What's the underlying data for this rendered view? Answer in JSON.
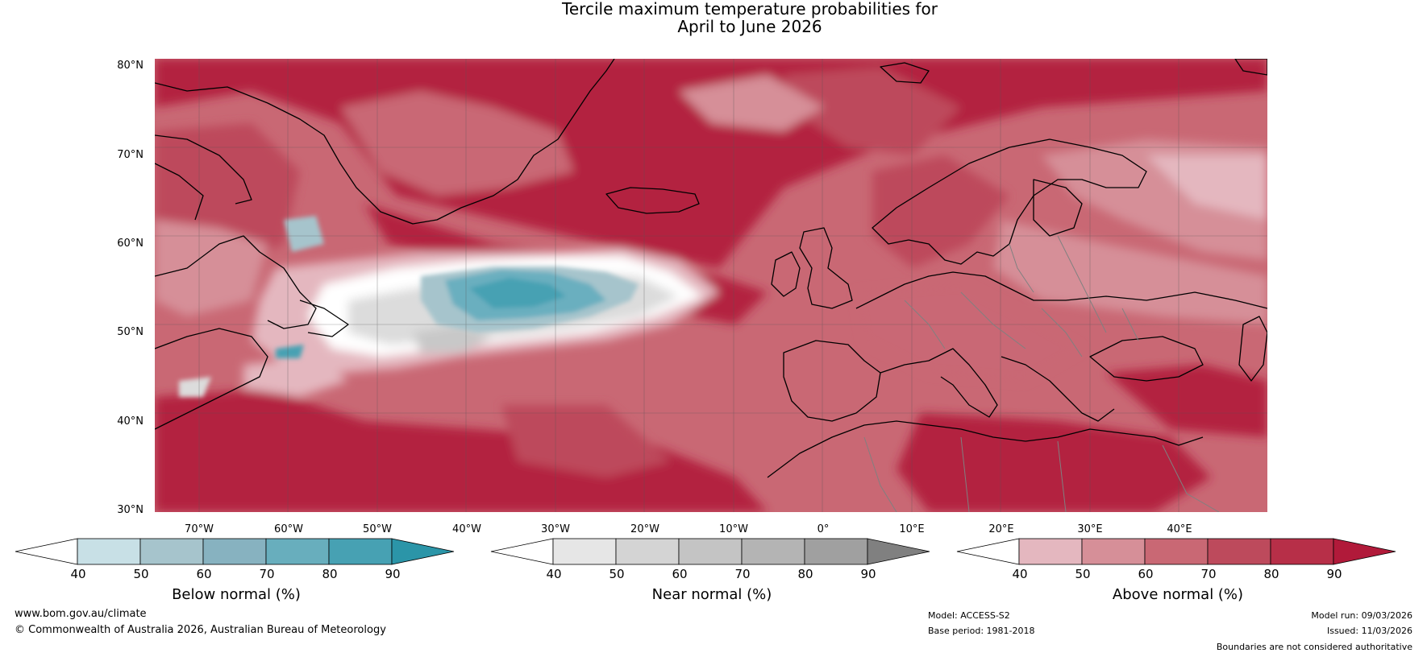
{
  "title": {
    "line1": "Tercile maximum temperature probabilities for",
    "line2": "April to June 2026"
  },
  "map": {
    "region": "North Atlantic and Europe",
    "lat_labels": [
      "80°N",
      "70°N",
      "60°N",
      "50°N",
      "40°N",
      "30°N"
    ],
    "lon_labels": [
      "70°W",
      "60°W",
      "50°W",
      "40°W",
      "30°W",
      "20°W",
      "10°W",
      "0°",
      "10°E",
      "20°E",
      "30°E",
      "40°E"
    ],
    "colors": {
      "above_60": "#c96874",
      "above_70": "#bd4a5c",
      "above_80": "#b3223f",
      "above_50": "#d68f98",
      "above_40": "#e4b7bf",
      "near_50": "#dcdcdc",
      "near_60": "#c8c8c8",
      "below_50": "#a6c4cc",
      "below_70": "#6aafbf",
      "below_90": "#2b95a8",
      "land_line": "#000000",
      "border": "#808080",
      "grid": "#555555"
    }
  },
  "legends": [
    {
      "title": "Below normal (%)",
      "ticks": [
        "40",
        "50",
        "60",
        "70",
        "80",
        "90"
      ],
      "colors": [
        "#ffffff",
        "#c8e0e6",
        "#a6c4cc",
        "#87b2c0",
        "#68aebd",
        "#47a1b3",
        "#2b95a8"
      ]
    },
    {
      "title": "Near normal (%)",
      "ticks": [
        "40",
        "50",
        "60",
        "70",
        "80",
        "90"
      ],
      "colors": [
        "#ffffff",
        "#e6e6e6",
        "#d4d4d4",
        "#c4c4c4",
        "#b4b4b4",
        "#a0a0a0",
        "#808080"
      ]
    },
    {
      "title": "Above normal (%)",
      "ticks": [
        "40",
        "50",
        "60",
        "70",
        "80",
        "90"
      ],
      "colors": [
        "#ffffff",
        "#e4b7bf",
        "#d68f98",
        "#c96874",
        "#bd4a5c",
        "#b72f48",
        "#b11a3a"
      ]
    }
  ],
  "footer": {
    "website": "www.bom.gov.au/climate",
    "copyright": "© Commonwealth of Australia 2026, Australian Bureau of Meteorology",
    "model": "Model: ACCESS-S2",
    "base_period": "Base period: 1981-2018",
    "model_run": "Model run: 09/03/2026",
    "issued": "Issued: 11/03/2026",
    "disclaimer": "Boundaries are not considered authoritative"
  }
}
